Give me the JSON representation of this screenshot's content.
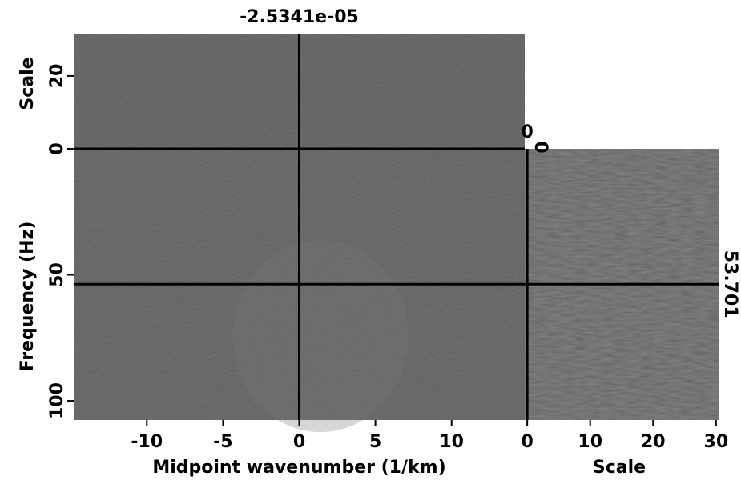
{
  "chart_data": [
    {
      "type": "image",
      "xlabel": "Midpoint wavenumber (1/km)",
      "ylabel": "Frequency (Hz)",
      "xlim": [
        -14.8,
        14.8
      ],
      "ylim": [
        107.6,
        0
      ],
      "xticks": [
        -10,
        -5,
        0,
        5,
        10
      ],
      "yticks": [
        0,
        50,
        100
      ],
      "crosshair_x": {
        "value": -2.5341e-05,
        "label": "-2.5341e-05"
      },
      "crosshair_y": 53.701
    },
    {
      "type": "image",
      "ylabel": "Scale",
      "ylim": [
        0,
        31.4
      ],
      "yticks": [
        0,
        20
      ],
      "crosshair_y": 0
    },
    {
      "type": "image",
      "xlabel": "Scale",
      "xlim": [
        -0.4,
        30.4
      ],
      "xticks": [
        0,
        10,
        20,
        30
      ],
      "crosshair_x": 0
    }
  ]
}
